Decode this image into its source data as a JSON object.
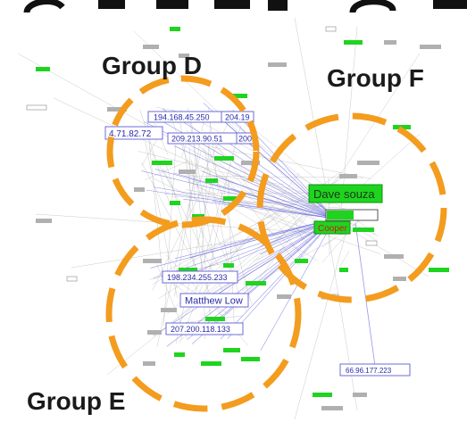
{
  "groups": {
    "d": "Group D",
    "e": "Group E",
    "f": "Group F"
  },
  "ip_nodes": {
    "n1": "194.168.45.250",
    "n2": "204.19",
    "n3": "4.71.82.72",
    "n4": "209.213.90.51",
    "n5": "200",
    "n6": "198.234.255.233",
    "n7": "207.200.118.133",
    "n8": "66.96.177.223"
  },
  "person_nodes": {
    "p1": "Dave souza",
    "p2": "Matthew Low",
    "p3": "Cooper"
  },
  "colors": {
    "circle": "#f39c1e",
    "edge_gray": "#b4b4b4",
    "edge_blue": "#6b6be0",
    "node_green": "#1fd41f",
    "node_gray": "#b0b0b0",
    "ip_border": "#6b6bd8",
    "ip_text": "#2a2aa8"
  }
}
